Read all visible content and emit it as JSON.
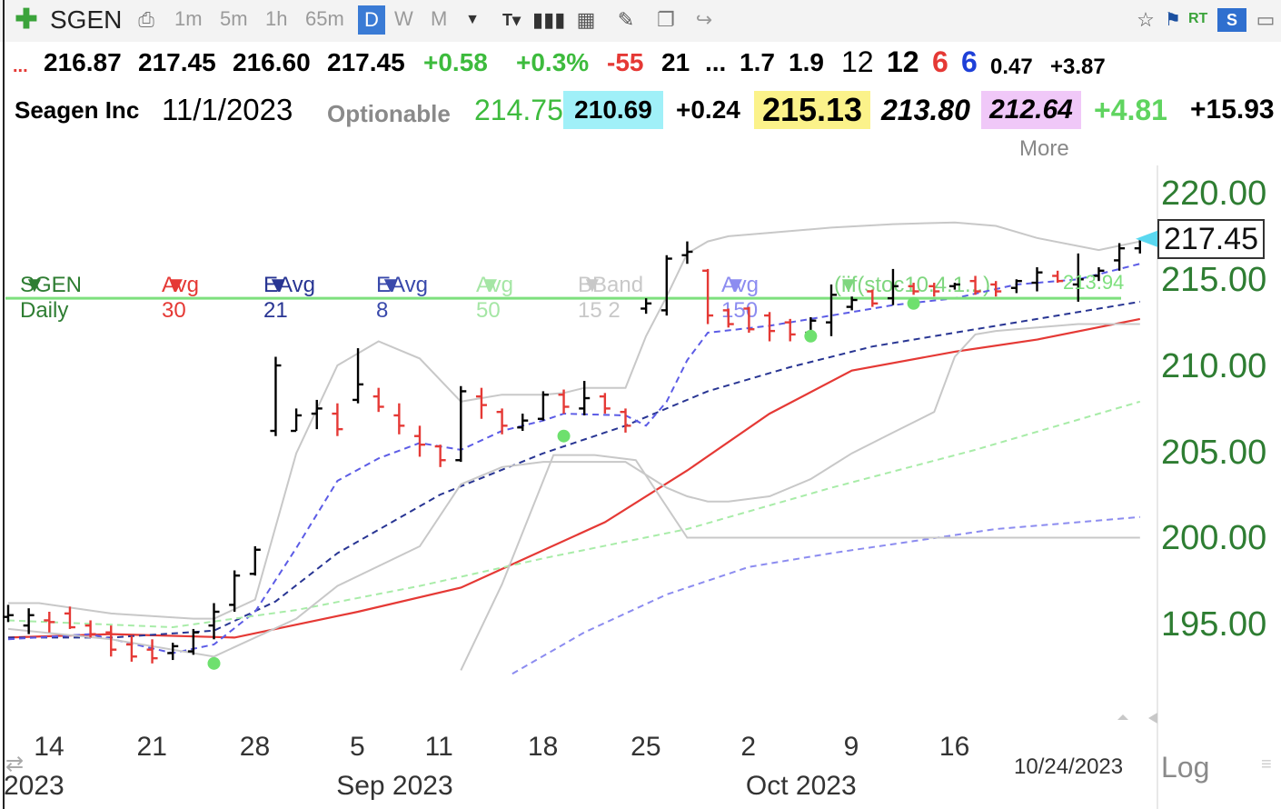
{
  "toolbar": {
    "symbol": "SGEN",
    "intervals": [
      "1m",
      "5m",
      "1h",
      "65m",
      "D",
      "W",
      "M"
    ],
    "selected_interval": "D",
    "rt_label": "RT",
    "s_label": "S"
  },
  "quote_line1": {
    "lead": "...",
    "open": "216.87",
    "high": "217.45",
    "low": "216.60",
    "close": "217.45",
    "change": "+0.58",
    "change_pct": "+0.3%",
    "v1": "-55",
    "v2": "21",
    "v3": "...",
    "v4": "1.7",
    "v5": "1.9",
    "v6": "12",
    "v7": "12",
    "v8": "6",
    "v9": "6",
    "v10": "0.47",
    "v11": "+3.87"
  },
  "quote_line2": {
    "company": "Seagen Inc",
    "date": "11/1/2023",
    "optionable": "Optionable",
    "v1": "214.75",
    "v2": "210.69",
    "v3": "+0.24",
    "v4": "215.13",
    "v5": "213.80",
    "v6": "212.64",
    "v7": "+4.81",
    "v8": "+15.93"
  },
  "legend": [
    {
      "label": "SGEN Daily",
      "color": "#2e7d32"
    },
    {
      "label": "Avg 30",
      "color": "#e53935"
    },
    {
      "label": "EAvg 21",
      "color": "#283593"
    },
    {
      "label": "EAvg 8",
      "color": "#3949ab"
    },
    {
      "label": "Avg 50",
      "color": "#a5e6a5"
    },
    {
      "label": "BBand 15 2",
      "color": "#c8c8c8"
    },
    {
      "label": "Avg 150",
      "color": "#8c8cf0"
    },
    {
      "label": "(iif(stoc10.4.1...)",
      "color": "#7ed67e"
    },
    {
      "label": "More",
      "color": "#888888"
    }
  ],
  "colors": {
    "up_bar": "#000000",
    "down_bar": "#e53935",
    "avg30": "#e53935",
    "eavg21": "#283593",
    "eavg8": "#5c5ce6",
    "avg50": "#a8ecA8",
    "bband": "#c8c8c8",
    "avg150": "#8c8cf0",
    "hline": "#7ee07e",
    "dot": "#6ee06e",
    "axis_text": "#2e7d32"
  },
  "chart_data": {
    "type": "ohlc",
    "symbol": "SGEN",
    "interval": "Daily",
    "y_ticks": [
      "220.00",
      "215.00",
      "210.00",
      "205.00",
      "200.00",
      "195.00"
    ],
    "y_tick_values": [
      220,
      215,
      210,
      205,
      200,
      195
    ],
    "ylim": [
      192.0,
      221.5
    ],
    "current_price_label": "217.45",
    "current_price": 217.45,
    "horizontal_line": 214.0,
    "horizontal_line_label": "213.94",
    "x_ticks": [
      "14",
      "21",
      "28",
      "5",
      "11",
      "18",
      "25",
      "2",
      "9",
      "16"
    ],
    "x_tick_index": [
      2,
      7,
      12,
      17,
      21,
      26,
      31,
      36,
      41,
      46
    ],
    "month_labels": [
      "2023",
      "Sep 2023",
      "Oct 2023"
    ],
    "month_label_index": [
      -0.5,
      16.3,
      36.2
    ],
    "date_label": "10/24/2023",
    "scale_label": "Log",
    "bars": [
      {
        "o": 195.5,
        "h": 196.2,
        "l": 195.2,
        "c": 195.6
      },
      {
        "o": 195.0,
        "h": 196.0,
        "l": 194.5,
        "c": 195.6
      },
      {
        "o": 195.3,
        "h": 195.8,
        "l": 194.6,
        "c": 195.2
      },
      {
        "o": 195.7,
        "h": 196.1,
        "l": 194.8,
        "c": 194.9
      },
      {
        "o": 195.0,
        "h": 195.3,
        "l": 194.3,
        "c": 194.5
      },
      {
        "o": 194.6,
        "h": 195.0,
        "l": 193.2,
        "c": 193.6
      },
      {
        "o": 193.9,
        "h": 194.4,
        "l": 192.9,
        "c": 193.2
      },
      {
        "o": 193.6,
        "h": 194.2,
        "l": 192.8,
        "c": 193.1
      },
      {
        "o": 193.4,
        "h": 194.0,
        "l": 193.0,
        "c": 193.8
      },
      {
        "o": 193.5,
        "h": 194.8,
        "l": 193.3,
        "c": 194.6
      },
      {
        "o": 195.0,
        "h": 196.3,
        "l": 194.2,
        "c": 195.8
      },
      {
        "o": 196.2,
        "h": 198.2,
        "l": 195.8,
        "c": 197.9
      },
      {
        "o": 198.0,
        "h": 199.6,
        "l": 197.9,
        "c": 199.4
      },
      {
        "o": 206.3,
        "h": 210.6,
        "l": 206.0,
        "c": 210.1
      },
      {
        "o": 206.3,
        "h": 207.6,
        "l": 206.3,
        "c": 207.2
      },
      {
        "o": 207.3,
        "h": 208.1,
        "l": 206.4,
        "c": 207.6
      },
      {
        "o": 207.3,
        "h": 207.9,
        "l": 206.0,
        "c": 206.4
      },
      {
        "o": 208.1,
        "h": 211.1,
        "l": 207.9,
        "c": 209.0
      },
      {
        "o": 208.3,
        "h": 208.8,
        "l": 207.4,
        "c": 207.7
      },
      {
        "o": 207.2,
        "h": 207.9,
        "l": 206.1,
        "c": 206.6
      },
      {
        "o": 206.0,
        "h": 206.6,
        "l": 204.8,
        "c": 205.5
      },
      {
        "o": 205.4,
        "h": 205.5,
        "l": 204.2,
        "c": 204.6
      },
      {
        "o": 204.6,
        "h": 208.9,
        "l": 204.5,
        "c": 208.6
      },
      {
        "o": 208.3,
        "h": 208.8,
        "l": 207.0,
        "c": 207.8
      },
      {
        "o": 207.4,
        "h": 207.6,
        "l": 206.1,
        "c": 206.6
      },
      {
        "o": 206.5,
        "h": 207.3,
        "l": 206.3,
        "c": 206.9
      },
      {
        "o": 207.0,
        "h": 208.6,
        "l": 206.9,
        "c": 208.4
      },
      {
        "o": 208.4,
        "h": 208.7,
        "l": 207.3,
        "c": 207.7
      },
      {
        "o": 207.6,
        "h": 209.2,
        "l": 207.2,
        "c": 208.2
      },
      {
        "o": 208.3,
        "h": 208.5,
        "l": 207.3,
        "c": 207.6
      },
      {
        "o": 207.4,
        "h": 207.6,
        "l": 206.2,
        "c": 206.6
      },
      {
        "o": 213.4,
        "h": 214.0,
        "l": 213.1,
        "c": 213.7
      },
      {
        "o": 213.3,
        "h": 216.5,
        "l": 213.0,
        "c": 216.3
      },
      {
        "o": 216.5,
        "h": 217.3,
        "l": 216.0,
        "c": 216.7
      },
      {
        "o": 215.6,
        "h": 215.7,
        "l": 212.5,
        "c": 213.0
      },
      {
        "o": 213.3,
        "h": 213.4,
        "l": 212.3,
        "c": 212.5
      },
      {
        "o": 213.4,
        "h": 213.5,
        "l": 212.0,
        "c": 212.2
      },
      {
        "o": 213.0,
        "h": 213.2,
        "l": 211.5,
        "c": 212.1
      },
      {
        "o": 212.6,
        "h": 212.8,
        "l": 211.5,
        "c": 211.9
      },
      {
        "o": 212.0,
        "h": 212.9,
        "l": 211.5,
        "c": 212.7
      },
      {
        "o": 212.6,
        "h": 214.8,
        "l": 211.8,
        "c": 214.2
      },
      {
        "o": 213.5,
        "h": 214.1,
        "l": 213.3,
        "c": 213.9
      },
      {
        "o": 214.4,
        "h": 214.5,
        "l": 213.5,
        "c": 213.7
      },
      {
        "o": 214.0,
        "h": 215.7,
        "l": 213.6,
        "c": 214.7
      },
      {
        "o": 214.7,
        "h": 214.9,
        "l": 214.2,
        "c": 214.4
      },
      {
        "o": 214.7,
        "h": 214.9,
        "l": 214.1,
        "c": 214.4
      },
      {
        "o": 214.7,
        "h": 214.9,
        "l": 214.5,
        "c": 214.8
      },
      {
        "o": 215.0,
        "h": 215.3,
        "l": 214.2,
        "c": 214.4
      },
      {
        "o": 214.8,
        "h": 215.0,
        "l": 214.1,
        "c": 214.4
      },
      {
        "o": 214.6,
        "h": 215.1,
        "l": 214.3,
        "c": 215.0
      },
      {
        "o": 214.9,
        "h": 215.8,
        "l": 214.4,
        "c": 215.5
      },
      {
        "o": 215.3,
        "h": 215.6,
        "l": 214.9,
        "c": 215.0
      },
      {
        "o": 214.8,
        "h": 216.6,
        "l": 213.8,
        "c": 215.1
      },
      {
        "o": 215.3,
        "h": 215.8,
        "l": 215.0,
        "c": 215.6
      },
      {
        "o": 216.2,
        "h": 217.2,
        "l": 215.6,
        "c": 216.9
      },
      {
        "o": 216.9,
        "h": 217.5,
        "l": 216.6,
        "c": 217.45
      }
    ],
    "series": [
      {
        "name": "Avg 30",
        "style": "solid",
        "color_key": "avg30",
        "x": [
          0,
          5,
          11,
          17,
          22,
          29,
          33,
          37,
          41,
          46,
          50,
          55
        ],
        "y": [
          194.3,
          194.5,
          194.3,
          195.8,
          197.2,
          201.0,
          204.0,
          207.3,
          209.8,
          210.9,
          211.6,
          212.8
        ]
      },
      {
        "name": "EAvg 21",
        "style": "dashed",
        "color_key": "eavg21",
        "x": [
          0,
          5,
          10,
          13,
          16,
          21,
          26,
          30,
          34,
          38,
          42,
          46,
          50,
          55
        ],
        "y": [
          194.3,
          194.3,
          194.7,
          196.4,
          199.2,
          202.6,
          205.0,
          206.6,
          208.6,
          210.0,
          211.2,
          212.0,
          212.8,
          213.8
        ]
      },
      {
        "name": "EAvg 8",
        "style": "dashed",
        "color_key": "eavg8",
        "x": [
          0,
          4,
          8,
          10,
          12,
          14,
          16,
          18,
          20,
          22,
          24,
          26,
          27,
          30,
          31,
          32,
          33,
          34,
          37,
          40,
          43,
          46,
          49,
          52,
          55
        ],
        "y": [
          194.2,
          194.5,
          193.4,
          193.9,
          195.8,
          199.5,
          203.4,
          204.7,
          205.6,
          205.2,
          206.3,
          206.9,
          207.3,
          207.2,
          206.6,
          208.0,
          210.4,
          212.0,
          212.4,
          213.0,
          213.6,
          214.0,
          214.8,
          215.1,
          216.0
        ]
      },
      {
        "name": "Avg 50",
        "style": "dashed",
        "color_key": "avg50",
        "x": [
          0,
          8,
          14,
          20,
          26,
          33,
          40,
          47,
          55
        ],
        "y": [
          195.3,
          194.9,
          195.9,
          197.3,
          198.9,
          200.6,
          203.0,
          205.2,
          208.0
        ]
      },
      {
        "name": "Avg 150",
        "style": "dashed",
        "color_key": "avg150",
        "x": [
          24.5,
          28,
          32,
          36,
          40,
          44,
          48,
          51,
          55
        ],
        "y": [
          192.2,
          194.6,
          196.8,
          198.4,
          199.2,
          199.9,
          200.6,
          200.9,
          201.3
        ]
      },
      {
        "name": "BBand upper",
        "style": "solid",
        "color_key": "bband",
        "x": [
          0,
          1.5,
          5,
          9,
          10,
          12,
          14,
          16,
          18,
          20,
          22,
          24,
          26,
          27,
          28,
          29,
          30,
          31,
          32,
          33,
          34,
          35,
          37,
          40,
          43,
          46,
          48,
          50,
          53,
          55
        ],
        "y": [
          196.3,
          196.3,
          195.7,
          195.4,
          195.4,
          196.5,
          205.0,
          210.1,
          211.5,
          210.5,
          208.0,
          208.4,
          208.4,
          208.5,
          208.8,
          208.8,
          208.8,
          211.8,
          214.1,
          216.6,
          217.3,
          217.6,
          217.8,
          218.1,
          218.3,
          218.4,
          218.2,
          217.5,
          216.8,
          217.3
        ]
      },
      {
        "name": "BBand lower",
        "style": "solid",
        "color_key": "bband",
        "x": [
          0,
          5,
          10,
          14,
          16,
          20,
          22,
          24,
          26,
          28,
          30,
          32,
          33,
          34,
          35,
          37,
          39,
          41,
          43,
          45,
          46,
          47,
          48,
          50,
          52,
          55
        ],
        "y": [
          194.8,
          194.2,
          193.2,
          195.4,
          197.3,
          199.6,
          203.2,
          204.2,
          204.5,
          204.5,
          204.5,
          203.0,
          202.5,
          202.2,
          202.2,
          202.5,
          203.5,
          205.0,
          206.2,
          207.4,
          210.6,
          211.9,
          212.1,
          212.3,
          212.5,
          212.5
        ]
      },
      {
        "name": "(iif(stoc10.4.1...)",
        "style": "solid",
        "color_key": "bband",
        "x": [
          22,
          24,
          26.5,
          28.5,
          30.5,
          33,
          55
        ],
        "y": [
          192.4,
          197.4,
          204.9,
          204.9,
          204.6,
          200.1,
          200.1
        ]
      }
    ],
    "signal_dots": [
      {
        "x": 10,
        "y": 192.8
      },
      {
        "x": 27,
        "y": 206.0
      },
      {
        "x": 39,
        "y": 211.8
      },
      {
        "x": 44,
        "y": 213.7
      }
    ]
  }
}
